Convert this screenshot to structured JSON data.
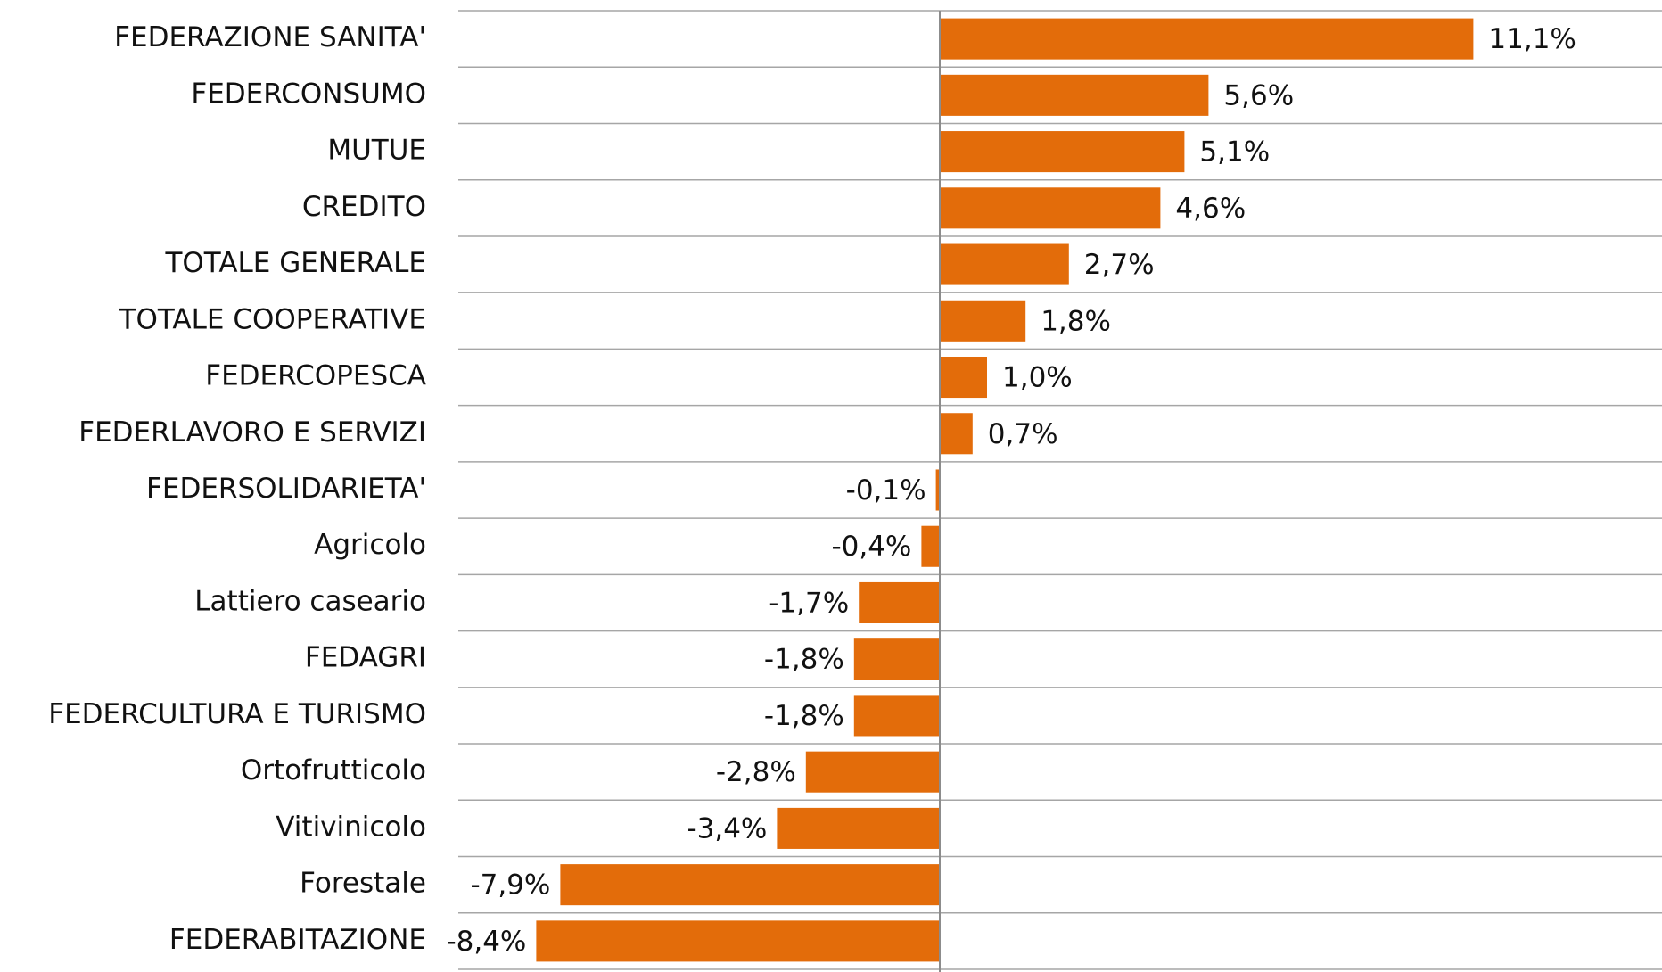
{
  "chart_data": {
    "type": "hbar",
    "categories": [
      "FEDERAZIONE SANITA'",
      "FEDERCONSUMO",
      "MUTUE",
      "CREDITO",
      "TOTALE GENERALE",
      "TOTALE COOPERATIVE",
      "FEDERCOPESCA",
      "FEDERLAVORO E SERVIZI",
      "FEDERSOLIDARIETA'",
      "Agricolo",
      "Lattiero caseario",
      "FEDAGRI",
      "FEDERCULTURA E TURISMO",
      "Ortofrutticolo",
      "Vitivinicolo",
      "Forestale",
      "FEDERABITAZIONE"
    ],
    "values": [
      11.1,
      5.6,
      5.1,
      4.6,
      2.7,
      1.8,
      1.0,
      0.7,
      -0.1,
      -0.4,
      -1.7,
      -1.8,
      -1.8,
      -2.8,
      -3.4,
      -7.9,
      -8.4
    ],
    "value_labels": [
      "11,1%",
      "5,6%",
      "5,1%",
      "4,6%",
      "2,7%",
      "1,8%",
      "1,0%",
      "0,7%",
      "-0,1%",
      "-0,4%",
      "-1,7%",
      "-1,8%",
      "-1,8%",
      "-2,8%",
      "-3,4%",
      "-7,9%",
      "-8,4%"
    ],
    "color": "#e36c0a",
    "xlim": [
      -10,
      15
    ]
  }
}
